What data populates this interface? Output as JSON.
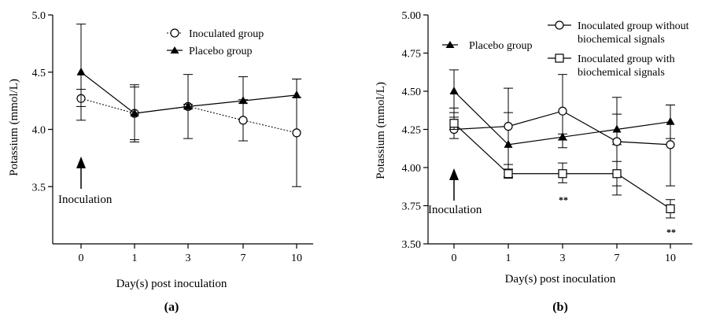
{
  "chart_data": [
    {
      "type": "line",
      "panel_label": "(a)",
      "categories": [
        "0",
        "1",
        "3",
        "7",
        "10"
      ],
      "xlabel": "Day(s) post inoculation",
      "ylabel": "Potassium (mmol/L)",
      "ylim": [
        3.0,
        5.0
      ],
      "yticks": [
        "3.5",
        "4.0",
        "4.5",
        "5.0"
      ],
      "annotation": "Inoculation",
      "legend_position": "top-right",
      "series": [
        {
          "name": "Inoculated group",
          "marker": "open-circle",
          "line_style": "dotted",
          "values": [
            4.27,
            4.14,
            4.2,
            4.08,
            3.97
          ],
          "err_upper": [
            4.35,
            4.37,
            4.48,
            4.26,
            4.44
          ],
          "err_lower": [
            4.2,
            3.91,
            3.92,
            3.9,
            3.5
          ]
        },
        {
          "name": "Placebo group",
          "marker": "filled-triangle",
          "line_style": "solid",
          "values": [
            4.5,
            4.14,
            4.2,
            4.25,
            4.3
          ],
          "err_upper": [
            4.92,
            4.39,
            4.22,
            4.46,
            4.44
          ],
          "err_lower": [
            4.08,
            3.89,
            4.18,
            4.23,
            4.28
          ]
        }
      ]
    },
    {
      "type": "line",
      "panel_label": "(b)",
      "categories": [
        "0",
        "1",
        "3",
        "7",
        "10"
      ],
      "xlabel": "Day(s) post inoculation",
      "ylabel": "Potassium (mmol/L)",
      "ylim": [
        3.5,
        5.0
      ],
      "yticks": [
        "3.50",
        "3.75",
        "4.00",
        "4.25",
        "4.50",
        "4.75",
        "5.00"
      ],
      "annotation": "Inoculation",
      "significance": [
        {
          "category": "3",
          "text": "**",
          "value": 3.84
        },
        {
          "category": "10",
          "text": "**",
          "value": 3.59
        }
      ],
      "legend_position": "top",
      "series": [
        {
          "name": "Placebo group",
          "marker": "filled-triangle",
          "line_style": "solid",
          "values": [
            4.5,
            4.15,
            4.2,
            4.25,
            4.3
          ],
          "err_upper": [
            4.64,
            4.36,
            4.22,
            4.35,
            4.41
          ],
          "err_lower": [
            4.36,
            3.94,
            4.18,
            4.15,
            4.19
          ]
        },
        {
          "name": "Inoculated group without biochemical signals",
          "marker": "open-circle",
          "line_style": "solid",
          "values": [
            4.25,
            4.27,
            4.37,
            4.17,
            4.15
          ],
          "err_upper": [
            4.39,
            4.52,
            4.61,
            4.46,
            4.41
          ],
          "err_lower": [
            4.19,
            4.02,
            4.13,
            3.88,
            3.88
          ]
        },
        {
          "name": "Inoculated group with biochemical signals",
          "marker": "open-square",
          "line_style": "solid",
          "values": [
            4.29,
            3.96,
            3.96,
            3.96,
            3.73
          ],
          "err_upper": [
            4.33,
            3.99,
            4.03,
            4.04,
            3.79
          ],
          "err_lower": [
            4.25,
            3.93,
            3.9,
            3.82,
            3.67
          ]
        }
      ]
    }
  ]
}
